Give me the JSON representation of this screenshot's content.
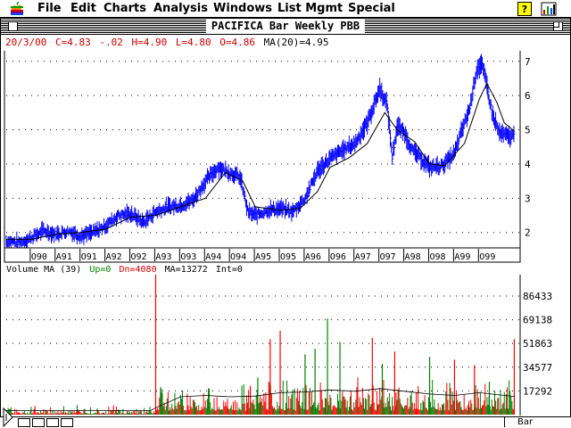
{
  "menubar": {
    "items": [
      "File",
      "Edit",
      "Charts",
      "Analysis",
      "Windows",
      "List Mgmt",
      "Special"
    ]
  },
  "window": {
    "title": "PACIFICA Bar Weekly PBB"
  },
  "quote_line": {
    "date": "20/3/00",
    "close": "C=4.83",
    "change": "-.02",
    "high": "H=4.90",
    "low": "L=4.80",
    "open": "O=4.86",
    "ma": "MA(20)=4.95"
  },
  "volume_line": {
    "label": "Volume MA (39)",
    "up": "Up=0",
    "dn": "Dn=4080",
    "ma": "MA=13272",
    "int": "Int=0"
  },
  "statusbar": {
    "chart_type": "Bar"
  },
  "colors": {
    "price": "#0000ff",
    "ma": "#000000",
    "up": "#008000",
    "down": "#ff0000",
    "quote_red": "#cc0000",
    "label_green": "#008000"
  },
  "chart_data": [
    {
      "type": "line",
      "series": [
        {
          "name": "Bar",
          "kind": "ohlc-weekly"
        },
        {
          "name": "MA(20)",
          "kind": "moving-average"
        }
      ],
      "x_tick_labels": [
        "O90",
        "A91",
        "O91",
        "A92",
        "O92",
        "A93",
        "O93",
        "A94",
        "O94",
        "A95",
        "O95",
        "A96",
        "O96",
        "A97",
        "O97",
        "A98",
        "O98",
        "A99",
        "O99"
      ],
      "x_tick_positions": [
        1990.75,
        1991.25,
        1991.75,
        1992.25,
        1992.75,
        1993.25,
        1993.75,
        1994.25,
        1994.75,
        1995.25,
        1995.75,
        1996.25,
        1996.75,
        1997.25,
        1997.75,
        1998.25,
        1998.75,
        1999.25,
        1999.75
      ],
      "xlim": [
        1990.0,
        2000.3
      ],
      "ylim": [
        1.55,
        7.15
      ],
      "y_ticks": [
        2,
        3,
        4,
        5,
        6,
        7
      ],
      "price_path": [
        [
          1990.0,
          1.75
        ],
        [
          1990.3,
          1.7
        ],
        [
          1990.5,
          1.85
        ],
        [
          1990.75,
          2.05
        ],
        [
          1991.0,
          1.95
        ],
        [
          1991.25,
          2.05
        ],
        [
          1991.5,
          1.9
        ],
        [
          1991.75,
          2.0
        ],
        [
          1992.0,
          2.2
        ],
        [
          1992.25,
          2.5
        ],
        [
          1992.5,
          2.55
        ],
        [
          1992.75,
          2.3
        ],
        [
          1993.0,
          2.6
        ],
        [
          1993.25,
          2.75
        ],
        [
          1993.5,
          2.8
        ],
        [
          1993.75,
          2.95
        ],
        [
          1994.0,
          3.5
        ],
        [
          1994.25,
          3.9
        ],
        [
          1994.5,
          3.75
        ],
        [
          1994.7,
          3.6
        ],
        [
          1994.85,
          2.6
        ],
        [
          1995.0,
          2.5
        ],
        [
          1995.25,
          2.65
        ],
        [
          1995.5,
          2.7
        ],
        [
          1995.75,
          2.6
        ],
        [
          1996.0,
          3.0
        ],
        [
          1996.25,
          3.8
        ],
        [
          1996.5,
          4.15
        ],
        [
          1996.75,
          4.4
        ],
        [
          1997.0,
          4.6
        ],
        [
          1997.25,
          5.2
        ],
        [
          1997.5,
          6.2
        ],
        [
          1997.65,
          5.7
        ],
        [
          1997.75,
          4.2
        ],
        [
          1997.85,
          5.1
        ],
        [
          1998.0,
          4.9
        ],
        [
          1998.15,
          4.4
        ],
        [
          1998.3,
          4.2
        ],
        [
          1998.5,
          3.9
        ],
        [
          1998.75,
          3.95
        ],
        [
          1999.0,
          4.3
        ],
        [
          1999.15,
          5.0
        ],
        [
          1999.3,
          5.6
        ],
        [
          1999.45,
          6.8
        ],
        [
          1999.55,
          6.9
        ],
        [
          1999.65,
          6.3
        ],
        [
          1999.75,
          5.5
        ],
        [
          1999.9,
          4.9
        ],
        [
          2000.1,
          4.8
        ],
        [
          2000.21,
          4.83
        ]
      ],
      "ma_path": [
        [
          1990.0,
          1.8
        ],
        [
          1990.5,
          1.8
        ],
        [
          1991.0,
          1.95
        ],
        [
          1991.5,
          2.0
        ],
        [
          1992.0,
          2.1
        ],
        [
          1992.5,
          2.45
        ],
        [
          1993.0,
          2.5
        ],
        [
          1993.5,
          2.75
        ],
        [
          1994.0,
          3.0
        ],
        [
          1994.4,
          3.75
        ],
        [
          1994.75,
          3.5
        ],
        [
          1995.0,
          2.75
        ],
        [
          1995.5,
          2.65
        ],
        [
          1995.9,
          2.7
        ],
        [
          1996.25,
          3.2
        ],
        [
          1996.5,
          3.9
        ],
        [
          1996.9,
          4.2
        ],
        [
          1997.25,
          4.6
        ],
        [
          1997.6,
          5.5
        ],
        [
          1997.85,
          5.0
        ],
        [
          1998.2,
          4.65
        ],
        [
          1998.5,
          4.0
        ],
        [
          1998.8,
          3.95
        ],
        [
          1999.2,
          4.6
        ],
        [
          1999.5,
          5.9
        ],
        [
          1999.65,
          6.35
        ],
        [
          1999.85,
          5.8
        ],
        [
          2000.0,
          5.2
        ],
        [
          2000.21,
          4.95
        ]
      ]
    },
    {
      "type": "bar",
      "series": [
        {
          "name": "Volume",
          "kind": "histogram-up-down"
        },
        {
          "name": "MA (39)",
          "kind": "moving-average"
        }
      ],
      "y_ticks": [
        17292,
        34577,
        51863,
        69138,
        86433
      ],
      "ylim": [
        0,
        102000
      ],
      "current": 4080,
      "ma_current": 13272,
      "spikes": [
        [
          1993.0,
          102000,
          "down"
        ],
        [
          1993.1,
          20000,
          "up"
        ],
        [
          1994.9,
          21000,
          "down"
        ],
        [
          1995.05,
          27000,
          "up"
        ],
        [
          1995.3,
          55000,
          "down"
        ],
        [
          1995.5,
          61000,
          "down"
        ],
        [
          1996.0,
          44000,
          "up"
        ],
        [
          1996.2,
          48000,
          "up"
        ],
        [
          1996.45,
          70000,
          "up"
        ],
        [
          1996.7,
          53000,
          "up"
        ],
        [
          1997.35,
          56000,
          "down"
        ],
        [
          1997.55,
          37000,
          "up"
        ],
        [
          1997.8,
          46000,
          "down"
        ],
        [
          1998.5,
          42000,
          "up"
        ],
        [
          1999.0,
          40000,
          "down"
        ],
        [
          1999.4,
          36000,
          "down"
        ],
        [
          1999.7,
          24000,
          "up"
        ],
        [
          2000.2,
          55000,
          "down"
        ]
      ],
      "ma_path": [
        [
          1990.0,
          3000
        ],
        [
          1992.9,
          3000
        ],
        [
          1993.0,
          5000
        ],
        [
          1993.5,
          13000
        ],
        [
          1994.0,
          14000
        ],
        [
          1994.5,
          13000
        ],
        [
          1995.0,
          13500
        ],
        [
          1995.5,
          16000
        ],
        [
          1996.0,
          16500
        ],
        [
          1996.5,
          18000
        ],
        [
          1997.0,
          17000
        ],
        [
          1997.5,
          19000
        ],
        [
          1998.0,
          17000
        ],
        [
          1998.5,
          15000
        ],
        [
          1999.0,
          14000
        ],
        [
          1999.5,
          16000
        ],
        [
          2000.0,
          14000
        ],
        [
          2000.21,
          13272
        ]
      ]
    }
  ]
}
